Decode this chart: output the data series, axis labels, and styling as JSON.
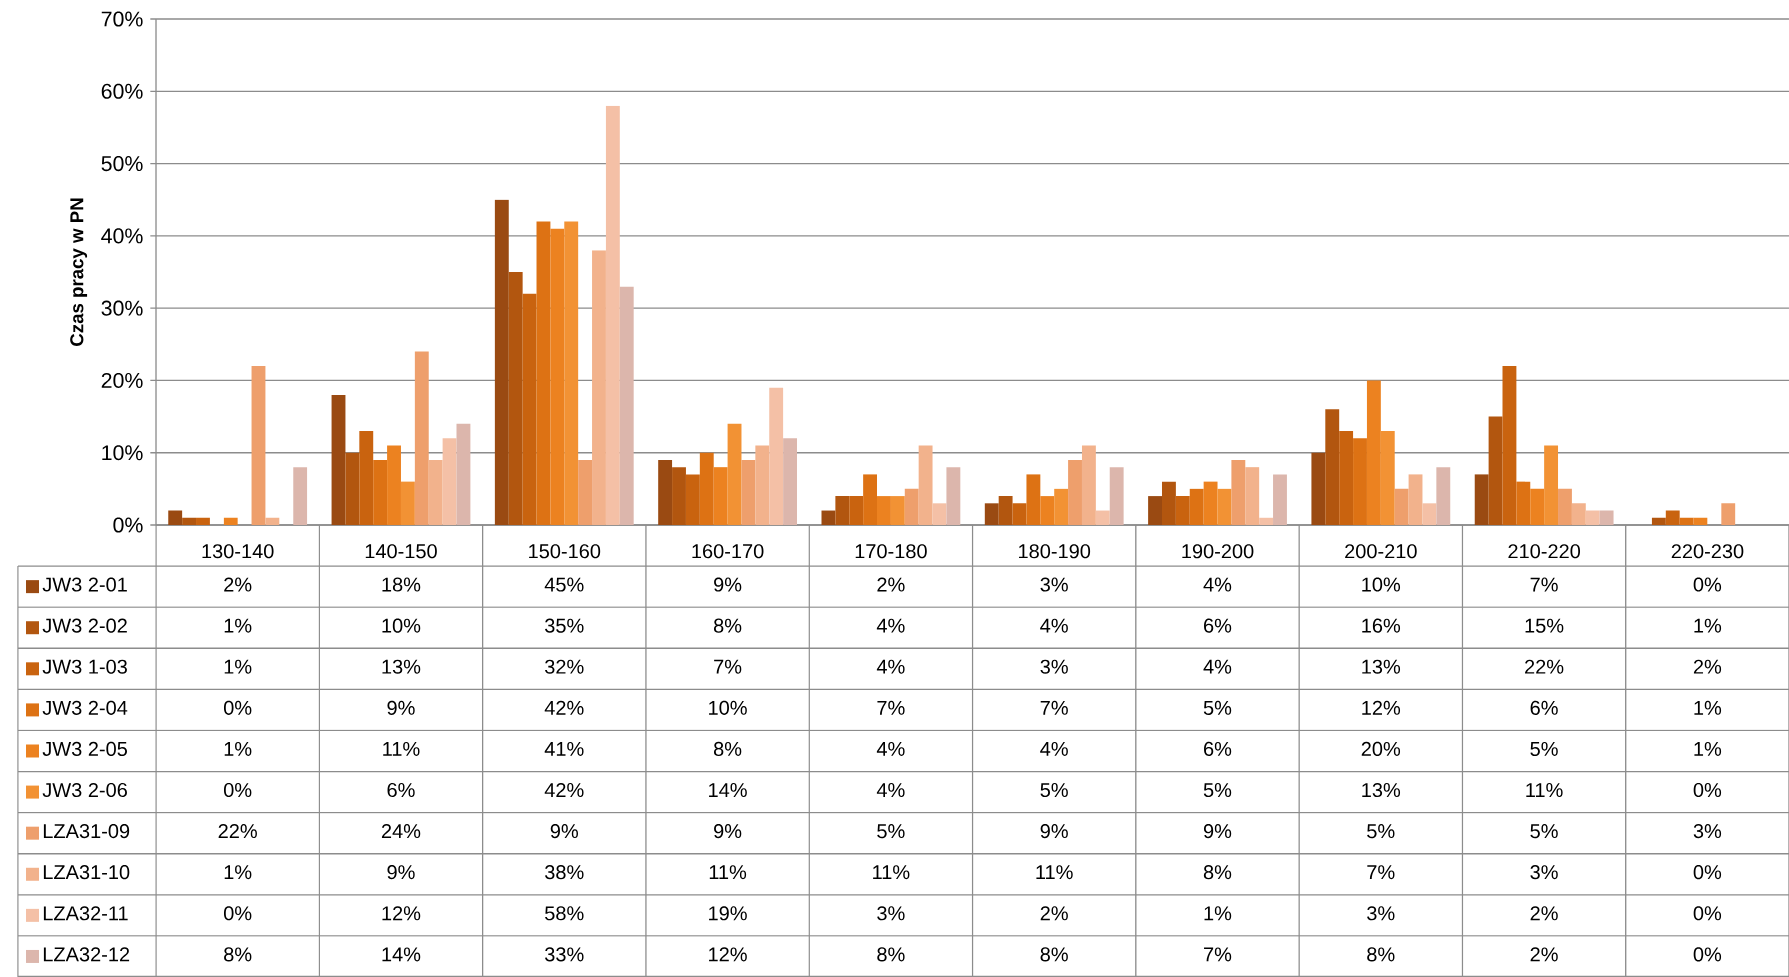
{
  "chart_data": {
    "type": "bar",
    "ylabel": "Czas pracy w PN",
    "categories": [
      "130-140",
      "140-150",
      "150-160",
      "160-170",
      "170-180",
      "180-190",
      "190-200",
      "200-210",
      "210-220",
      "220-230"
    ],
    "ylim": [
      0,
      70
    ],
    "yticks": [
      {
        "value": 0,
        "label": "0%"
      },
      {
        "value": 10,
        "label": "10%"
      },
      {
        "value": 20,
        "label": "20%"
      },
      {
        "value": 30,
        "label": "30%"
      },
      {
        "value": 40,
        "label": "40%"
      },
      {
        "value": 50,
        "label": "50%"
      },
      {
        "value": 60,
        "label": "60%"
      },
      {
        "value": 70,
        "label": "70%"
      }
    ],
    "grid": "y",
    "legend": "bottom left",
    "series": [
      {
        "name": "JW3 2-01",
        "color": "#9a4a12",
        "values": [
          2,
          18,
          45,
          9,
          2,
          3,
          4,
          10,
          7,
          0
        ],
        "value_labels": [
          "2%",
          "18%",
          "45%",
          "9%",
          "2%",
          "3%",
          "4%",
          "10%",
          "7%",
          "0%"
        ]
      },
      {
        "name": "JW3 2-02",
        "color": "#b2560f",
        "values": [
          1,
          10,
          35,
          8,
          4,
          4,
          6,
          16,
          15,
          1
        ],
        "value_labels": [
          "1%",
          "10%",
          "35%",
          "8%",
          "4%",
          "4%",
          "6%",
          "16%",
          "15%",
          "1%"
        ]
      },
      {
        "name": "JW3 1-03",
        "color": "#c9630f",
        "values": [
          1,
          13,
          32,
          7,
          4,
          3,
          4,
          13,
          22,
          2
        ],
        "value_labels": [
          "1%",
          "13%",
          "32%",
          "7%",
          "4%",
          "3%",
          "4%",
          "13%",
          "22%",
          "2%"
        ]
      },
      {
        "name": "JW3 2-04",
        "color": "#dd7214",
        "values": [
          0,
          9,
          42,
          10,
          7,
          7,
          5,
          12,
          6,
          1
        ],
        "value_labels": [
          "0%",
          "9%",
          "42%",
          "10%",
          "7%",
          "7%",
          "5%",
          "12%",
          "6%",
          "1%"
        ]
      },
      {
        "name": "JW3 2-05",
        "color": "#ec8220",
        "values": [
          1,
          11,
          41,
          8,
          4,
          4,
          6,
          20,
          5,
          1
        ],
        "value_labels": [
          "1%",
          "11%",
          "41%",
          "8%",
          "4%",
          "4%",
          "6%",
          "20%",
          "5%",
          "1%"
        ]
      },
      {
        "name": "JW3 2-06",
        "color": "#f29234",
        "values": [
          0,
          6,
          42,
          14,
          4,
          5,
          5,
          13,
          11,
          0
        ],
        "value_labels": [
          "0%",
          "6%",
          "42%",
          "14%",
          "4%",
          "5%",
          "5%",
          "13%",
          "11%",
          "0%"
        ]
      },
      {
        "name": "LZA31-09",
        "color": "#ee9f6c",
        "values": [
          22,
          24,
          9,
          9,
          5,
          9,
          9,
          5,
          5,
          3
        ],
        "value_labels": [
          "22%",
          "24%",
          "9%",
          "9%",
          "5%",
          "9%",
          "9%",
          "5%",
          "5%",
          "3%"
        ]
      },
      {
        "name": "LZA31-10",
        "color": "#f2b28c",
        "values": [
          1,
          9,
          38,
          11,
          11,
          11,
          8,
          7,
          3,
          0
        ],
        "value_labels": [
          "1%",
          "9%",
          "38%",
          "11%",
          "11%",
          "11%",
          "8%",
          "7%",
          "3%",
          "0%"
        ]
      },
      {
        "name": "LZA32-11",
        "color": "#f4c0a6",
        "values": [
          0,
          12,
          58,
          19,
          3,
          2,
          1,
          3,
          2,
          0
        ],
        "value_labels": [
          "0%",
          "12%",
          "58%",
          "19%",
          "3%",
          "2%",
          "1%",
          "3%",
          "2%",
          "0%"
        ]
      },
      {
        "name": "LZA32-12",
        "color": "#dcb6ac",
        "values": [
          8,
          14,
          33,
          12,
          8,
          8,
          7,
          8,
          2,
          0
        ],
        "value_labels": [
          "8%",
          "14%",
          "33%",
          "12%",
          "8%",
          "8%",
          "7%",
          "8%",
          "2%",
          "0%"
        ]
      }
    ]
  }
}
